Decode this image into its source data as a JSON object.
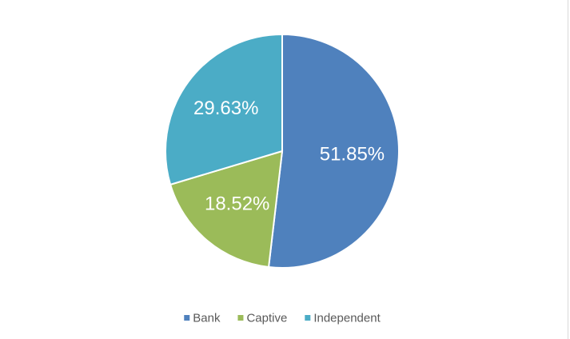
{
  "chart_data": {
    "type": "pie",
    "categories": [
      "Bank",
      "Captive",
      "Independent"
    ],
    "values": [
      51.85,
      18.52,
      29.63
    ],
    "value_labels": [
      "51.85%",
      "18.52%",
      "29.63%"
    ],
    "colors": [
      "#4f81bd",
      "#9bbb59",
      "#4bacc6"
    ],
    "legend": "bottom"
  }
}
